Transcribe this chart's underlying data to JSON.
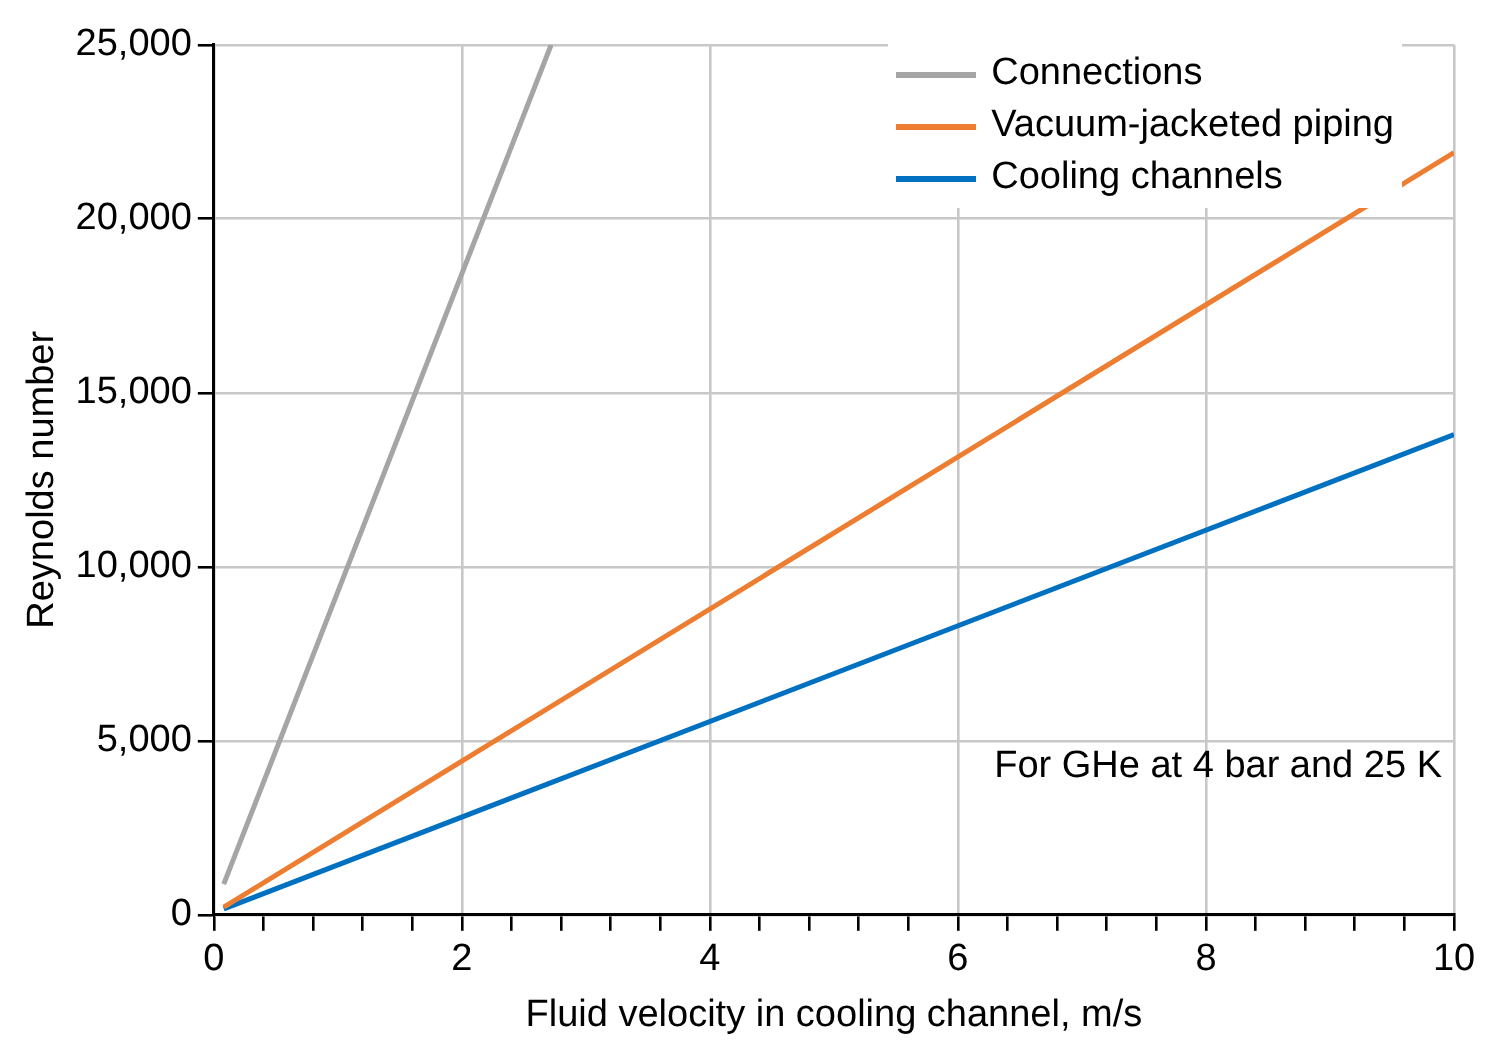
{
  "chart_data": {
    "type": "line",
    "xlabel": "Fluid velocity in cooling channel, m/s",
    "ylabel": "Reynolds number",
    "xlim": [
      0,
      10
    ],
    "ylim": [
      0,
      25000
    ],
    "xticks": [
      0,
      {
        "value": 0.4,
        "label": null
      },
      {
        "value": 0.8,
        "label": null
      },
      {
        "value": 1.2,
        "label": null
      },
      {
        "value": 1.6,
        "label": null
      },
      2,
      {
        "value": 2.4,
        "label": null
      },
      {
        "value": 2.8,
        "label": null
      },
      {
        "value": 3.2,
        "label": null
      },
      {
        "value": 3.6,
        "label": null
      },
      4,
      {
        "value": 4.4,
        "label": null
      },
      {
        "value": 4.8,
        "label": null
      },
      {
        "value": 5.2,
        "label": null
      },
      {
        "value": 5.6,
        "label": null
      },
      6,
      {
        "value": 6.4,
        "label": null
      },
      {
        "value": 6.8,
        "label": null
      },
      {
        "value": 7.2,
        "label": null
      },
      {
        "value": 7.6,
        "label": null
      },
      8,
      {
        "value": 8.4,
        "label": null
      },
      {
        "value": 8.8,
        "label": null
      },
      {
        "value": 9.2,
        "label": null
      },
      {
        "value": 9.6,
        "label": null
      },
      10
    ],
    "yticks": [
      {
        "value": 0,
        "label": "0"
      },
      {
        "value": 5000,
        "label": "5,000"
      },
      {
        "value": 10000,
        "label": "10,000"
      },
      {
        "value": 15000,
        "label": "15,000"
      },
      {
        "value": 20000,
        "label": "20,000"
      },
      {
        "value": 25000,
        "label": "25,000"
      }
    ],
    "grid": true,
    "legend": "top right",
    "marker": "none",
    "line_style": "solid",
    "annotations": [
      "For GHe at 4 bar and 25 K"
    ],
    "series": [
      {
        "name": "Connections",
        "color": "#a5a5a5",
        "x": [
          0.08,
          2.72
        ],
        "values": [
          880,
          25000
        ]
      },
      {
        "name": "Vacuum-jacketed piping",
        "color": "#ed7d31",
        "x": [
          0.08,
          10
        ],
        "values": [
          220,
          21900
        ]
      },
      {
        "name": "Cooling channels",
        "color": "#0070c0",
        "x": [
          0.08,
          10
        ],
        "values": [
          170,
          13800
        ]
      }
    ]
  }
}
